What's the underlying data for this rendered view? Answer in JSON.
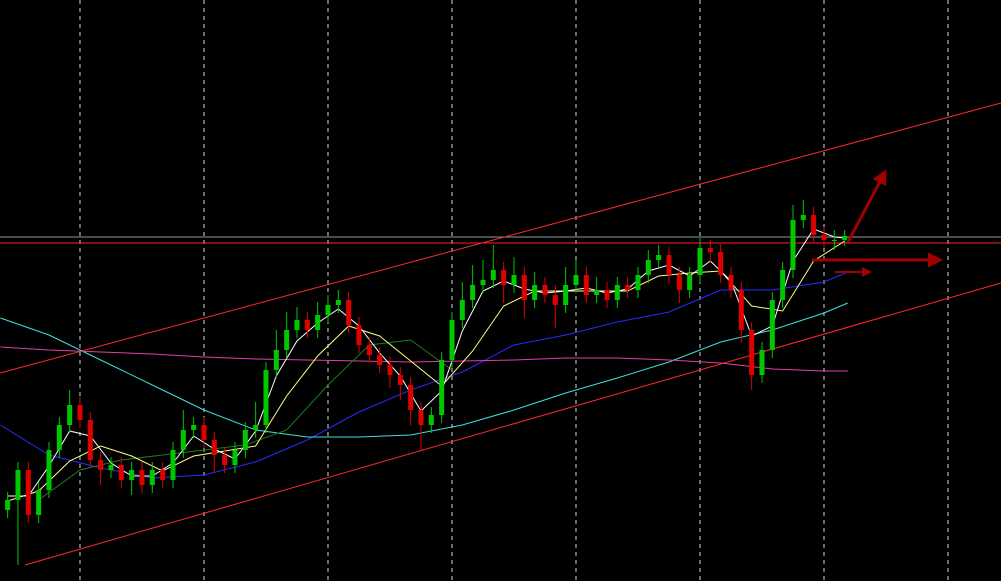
{
  "chart_data": {
    "type": "candlestick",
    "background": "#000000",
    "xlim": [
      -0.74,
      96.13
    ],
    "ylim": [
      0,
      581
    ],
    "xticks": [
      7,
      19,
      31,
      43,
      55,
      67,
      79,
      91
    ],
    "grid": true,
    "grid_color": "#ffffff",
    "up_color": "#00c800",
    "down_color": "#e00000",
    "open": [
      71,
      81,
      111,
      66,
      91,
      131,
      156,
      176,
      161,
      121,
      111,
      116,
      101,
      111,
      96,
      111,
      101,
      131,
      151,
      156,
      141,
      126,
      116,
      131,
      151,
      156,
      211,
      231,
      251,
      261,
      251,
      266,
      276,
      281,
      256,
      236,
      226,
      216,
      206,
      196,
      171,
      156,
      166,
      221,
      261,
      281,
      296,
      301,
      311,
      296,
      306,
      281,
      296,
      286,
      276,
      296,
      306,
      286,
      291,
      281,
      296,
      291,
      306,
      321,
      326,
      306,
      291,
      306,
      333,
      329,
      306,
      291,
      251,
      206,
      231,
      281,
      311,
      361,
      366,
      346,
      341,
      341
    ],
    "high": [
      89,
      119,
      119,
      99,
      139,
      164,
      191,
      184,
      169,
      129,
      124,
      124,
      119,
      119,
      119,
      119,
      139,
      171,
      164,
      164,
      149,
      134,
      139,
      159,
      179,
      219,
      251,
      269,
      274,
      269,
      279,
      286,
      291,
      289,
      264,
      244,
      234,
      224,
      214,
      204,
      179,
      174,
      229,
      269,
      299,
      316,
      321,
      336,
      319,
      324,
      314,
      309,
      304,
      296,
      314,
      321,
      314,
      304,
      299,
      304,
      304,
      314,
      331,
      336,
      334,
      314,
      314,
      343,
      341,
      337,
      314,
      299,
      259,
      239,
      289,
      319,
      376,
      381,
      374,
      354,
      351,
      351
    ],
    "low": [
      63,
      16,
      58,
      58,
      83,
      123,
      148,
      153,
      113,
      96,
      103,
      93,
      86,
      88,
      88,
      93,
      93,
      123,
      143,
      133,
      108,
      108,
      108,
      123,
      143,
      148,
      203,
      223,
      243,
      243,
      243,
      258,
      268,
      248,
      228,
      218,
      208,
      193,
      181,
      156,
      131,
      148,
      158,
      213,
      253,
      273,
      288,
      293,
      278,
      288,
      263,
      273,
      278,
      253,
      268,
      288,
      278,
      278,
      273,
      273,
      283,
      283,
      298,
      313,
      298,
      278,
      283,
      298,
      318,
      298,
      283,
      238,
      191,
      198,
      223,
      273,
      303,
      353,
      338,
      333,
      331,
      335
    ],
    "close": [
      81,
      111,
      66,
      91,
      131,
      156,
      176,
      161,
      121,
      111,
      116,
      101,
      111,
      96,
      111,
      101,
      131,
      151,
      156,
      141,
      126,
      116,
      131,
      151,
      156,
      211,
      231,
      251,
      261,
      251,
      266,
      276,
      281,
      256,
      236,
      226,
      216,
      206,
      196,
      171,
      156,
      166,
      221,
      261,
      281,
      296,
      301,
      311,
      296,
      306,
      281,
      296,
      286,
      276,
      296,
      306,
      286,
      291,
      281,
      296,
      291,
      306,
      321,
      326,
      306,
      291,
      306,
      333,
      329,
      306,
      291,
      251,
      206,
      231,
      281,
      311,
      361,
      366,
      346,
      341,
      341,
      345
    ],
    "series": [
      {
        "color": "#2a2aff",
        "x": [
          -0.7,
          4,
          9,
          14,
          19,
          24,
          29,
          34,
          39,
          44,
          49,
          54,
          59,
          64,
          69,
          74,
          79,
          81.3
        ],
        "values": [
          156,
          126,
          113,
          103,
          106,
          119,
          141,
          169,
          191,
          209,
          236,
          246,
          259,
          269,
          291,
          291,
          299,
          309
        ]
      },
      {
        "color": "#40e0e0",
        "x": [
          -0.7,
          4,
          9,
          14,
          19,
          24,
          29,
          34,
          39,
          44,
          49,
          54,
          59,
          64,
          69,
          74,
          79,
          81.3
        ],
        "values": [
          263,
          246,
          221,
          196,
          171,
          151,
          144,
          144,
          146,
          156,
          171,
          188,
          203,
          219,
          239,
          251,
          268,
          278
        ]
      },
      {
        "color": "#e040a0",
        "x": [
          -0.7,
          4,
          9,
          14,
          19,
          24,
          29,
          34,
          39,
          44,
          49,
          54,
          59,
          64,
          69,
          74,
          79,
          81.3
        ],
        "values": [
          234,
          231,
          229,
          227,
          224,
          222,
          221,
          220,
          219,
          220,
          221,
          223,
          223,
          221,
          218,
          212,
          210,
          210
        ]
      },
      {
        "color": "#1f7a1f",
        "x": [
          3,
          7,
          11,
          15,
          19,
          23,
          27,
          31,
          35,
          39,
          43
        ],
        "values": [
          81,
          111,
          121,
          126,
          131,
          136,
          151,
          196,
          236,
          241,
          211
        ]
      },
      {
        "color": "#ffff80",
        "x": [
          0,
          3,
          6,
          9,
          12,
          15,
          18,
          21,
          24,
          27,
          30,
          33,
          36,
          39,
          42,
          45,
          48,
          51,
          54,
          57,
          60,
          63,
          66,
          69,
          72,
          75,
          78,
          81
        ],
        "values": [
          80,
          90,
          120,
          135,
          125,
          110,
          125,
          130,
          135,
          185,
          225,
          255,
          245,
          220,
          195,
          230,
          275,
          290,
          290,
          290,
          290,
          305,
          308,
          310,
          275,
          270,
          320,
          340
        ]
      },
      {
        "color": "#ffffff",
        "x": [
          0,
          2,
          4,
          6,
          8,
          10,
          12,
          14,
          16,
          18,
          20,
          22,
          24,
          26,
          28,
          30,
          32,
          34,
          36,
          38,
          40,
          42,
          44,
          46,
          48,
          50,
          52,
          54,
          56,
          58,
          60,
          62,
          64,
          66,
          68,
          70,
          72,
          74,
          76,
          78,
          80,
          81
        ],
        "values": [
          85,
          85,
          115,
          150,
          145,
          118,
          105,
          105,
          118,
          145,
          132,
          122,
          150,
          205,
          240,
          258,
          272,
          255,
          228,
          205,
          170,
          190,
          250,
          290,
          300,
          292,
          288,
          290,
          293,
          288,
          292,
          310,
          316,
          305,
          320,
          300,
          245,
          255,
          320,
          352,
          344,
          343
        ]
      }
    ],
    "hlines": [
      {
        "value": 344,
        "color": "#8a9aa8"
      },
      {
        "value": 338,
        "color": "#ff2020"
      }
    ],
    "trendlines": [
      {
        "color": "#ff2a2a",
        "x": [
          -0.74,
          96.13
        ],
        "y": [
          208,
          478
        ]
      },
      {
        "color": "#ff2a2a",
        "x": [
          1.68,
          96.13
        ],
        "y": [
          16,
          298
        ]
      }
    ]
  }
}
